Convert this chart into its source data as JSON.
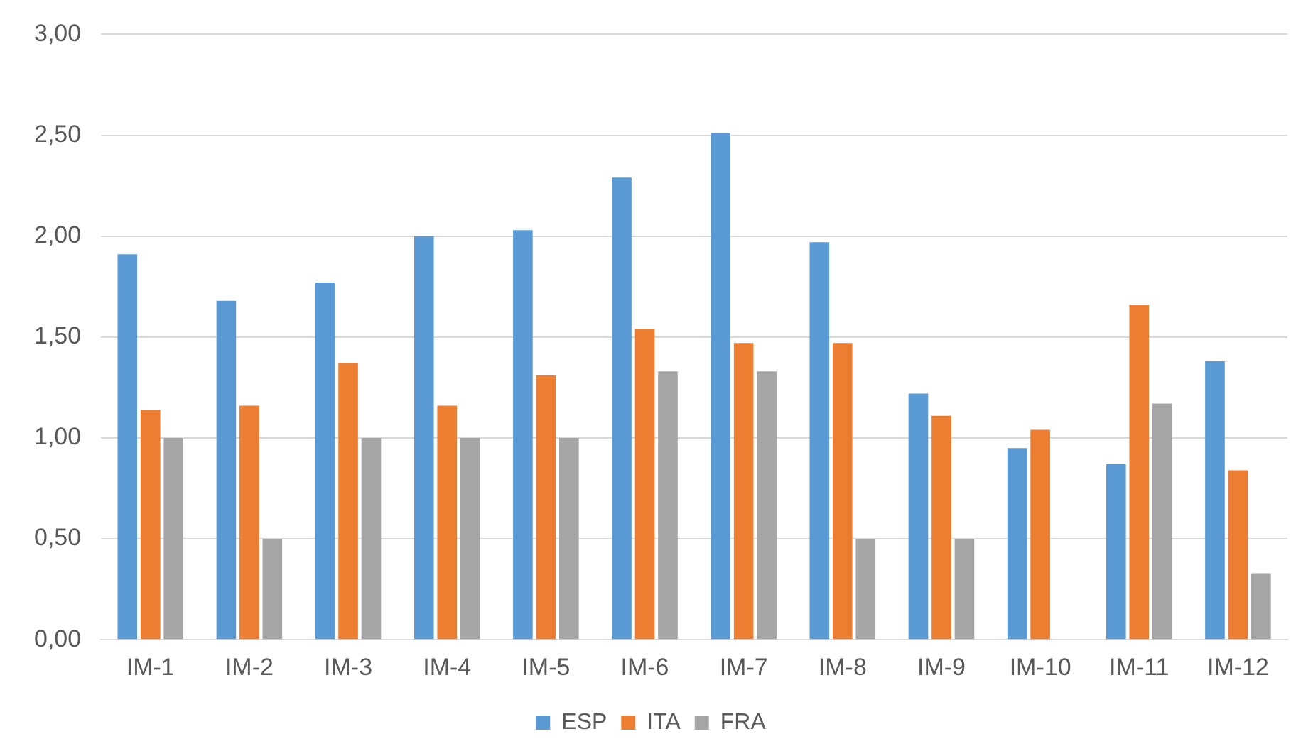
{
  "chart_data": {
    "type": "bar",
    "categories": [
      "IM-1",
      "IM-2",
      "IM-3",
      "IM-4",
      "IM-5",
      "IM-6",
      "IM-7",
      "IM-8",
      "IM-9",
      "IM-10",
      "IM-11",
      "IM-12"
    ],
    "series": [
      {
        "name": "ESP",
        "color": "#5b9bd5",
        "values": [
          1.91,
          1.68,
          1.77,
          2.0,
          2.03,
          2.29,
          2.51,
          1.97,
          1.22,
          0.95,
          0.87,
          1.38
        ]
      },
      {
        "name": "ITA",
        "color": "#ed7d31",
        "values": [
          1.14,
          1.16,
          1.37,
          1.16,
          1.31,
          1.54,
          1.47,
          1.47,
          1.11,
          1.04,
          1.66,
          0.84
        ]
      },
      {
        "name": "FRA",
        "color": "#a5a5a5",
        "values": [
          1.0,
          0.5,
          1.0,
          1.0,
          1.0,
          1.33,
          1.33,
          0.5,
          0.5,
          null,
          1.17,
          0.33
        ]
      }
    ],
    "ylim": [
      0,
      3
    ],
    "yticks": [
      {
        "value": 0,
        "label": "0,00"
      },
      {
        "value": 0.5,
        "label": "0,50"
      },
      {
        "value": 1,
        "label": "1,00"
      },
      {
        "value": 1.5,
        "label": "1,50"
      },
      {
        "value": 2,
        "label": "2,00"
      },
      {
        "value": 2.5,
        "label": "2,50"
      },
      {
        "value": 3,
        "label": "3,00"
      }
    ],
    "grid": "y",
    "legend": "bottom"
  }
}
